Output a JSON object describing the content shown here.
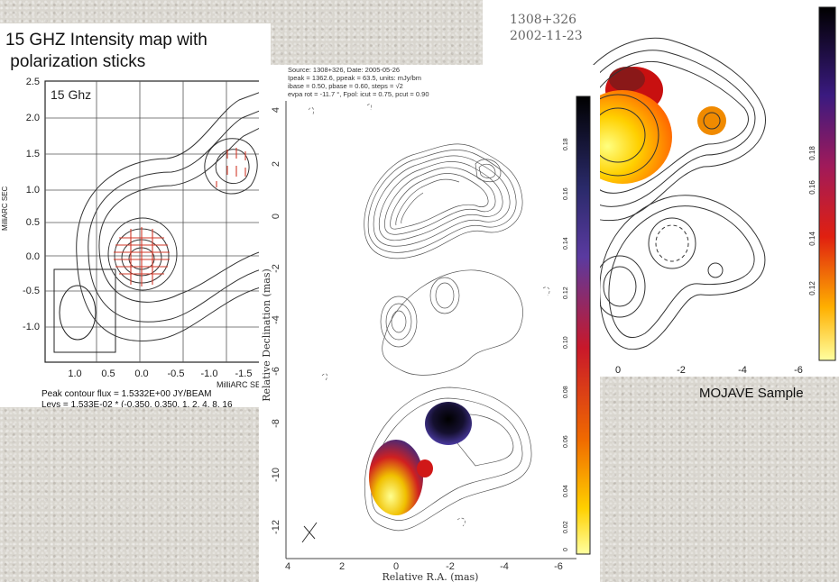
{
  "title_line1": "15 GHZ Intensity map with",
  "title_line2": " polarization sticks",
  "mojave_label": "MOJAVE Sample",
  "left": {
    "band_label": "15 Ghz",
    "ylabel": "MilliARC SEC",
    "xlabel": "MilliARC SEC",
    "yticks": [
      "2.5",
      "2.0",
      "1.5",
      "1.0",
      "0.5",
      "0.0",
      "-0.5",
      "-1.0"
    ],
    "xticks": [
      "1.0",
      "0.5",
      "0.0",
      "-0.5",
      "-1.0",
      "-1.5"
    ],
    "footer1": "Peak contour flux =  1.5332E+00 JY/BEAM",
    "footer2": "Levs = 1.533E-02 * (-0.350, 0.350, 1, 2, 4, 8, 16"
  },
  "center": {
    "header1": "Source: 1308+326, Date: 2005-05-26",
    "header2": "Ipeak = 1362.6, ppeak = 63.5, units: mJy/bm",
    "header3": "ibase = 0.50, pbase = 0.60, steps = √2",
    "header4": "evpa rot = -11.7 °, Fpol: icut = 0.75, pcut = 0.90",
    "ylabel": "Relative Declination (mas)",
    "xlabel": "Relative R.A. (mas)",
    "yticks": [
      "4",
      "2",
      "0",
      "-2",
      "-4",
      "-6",
      "-8",
      "-10",
      "-12"
    ],
    "xticks": [
      "4",
      "2",
      "0",
      "-2",
      "-4",
      "-6"
    ],
    "cbar_ticks": [
      "0.18",
      "0.16",
      "0.14",
      "0.12",
      "0.10",
      "0.08",
      "0.06",
      "0.04",
      "0.02",
      "0"
    ]
  },
  "right": {
    "source": "1308+326",
    "date": "2002-11-23",
    "xticks": [
      "0",
      "-2",
      "-4",
      "-6"
    ],
    "cbar_ticks": [
      "0.18",
      "0.16",
      "0.14",
      "0.12"
    ]
  },
  "colors": {
    "contour": "#333333",
    "pol_sticks": "#d23a2a",
    "cbar_top": "#000000",
    "cbar_mid": "#c8182a",
    "cbar_bottom": "#ffffa0"
  }
}
